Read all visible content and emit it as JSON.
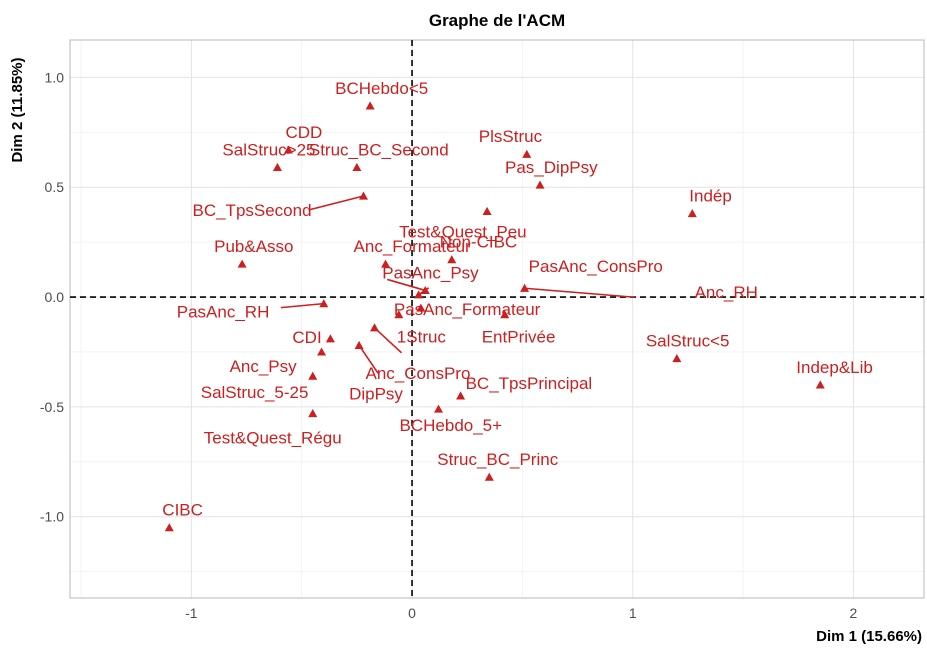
{
  "chart_data": {
    "type": "scatter",
    "title": "Graphe de l'ACM",
    "xlabel": "Dim 1 (15.66%)",
    "ylabel": "Dim 2 (11.85%)",
    "xlim": [
      -1.55,
      2.32
    ],
    "ylim": [
      -1.37,
      1.17
    ],
    "xticks": [
      -1,
      0,
      1,
      2
    ],
    "xtick_labels": [
      "-1",
      "0",
      "1",
      "2"
    ],
    "yticks": [
      1.0,
      0.5,
      0.0,
      -0.5,
      -1.0
    ],
    "ytick_labels": [
      "1.0",
      "0.5",
      "0.0",
      "-0.5",
      "-1.0"
    ],
    "grid": true,
    "reference_lines": {
      "x": 0,
      "y": 0
    },
    "marker": "triangle",
    "color": "#cc1f1f",
    "points": [
      {
        "label": "BCHebdo<5",
        "x": -0.19,
        "y": 0.87
      },
      {
        "label": "CDD",
        "x": -0.56,
        "y": 0.67
      },
      {
        "label": "PlsStruc",
        "x": 0.52,
        "y": 0.65
      },
      {
        "label": "SalStruc>25",
        "x": -0.61,
        "y": 0.59
      },
      {
        "label": "Struc_BC_Second",
        "x": -0.25,
        "y": 0.59
      },
      {
        "label": "Pas_DipPsy",
        "x": 0.58,
        "y": 0.51
      },
      {
        "label": "BC_TpsSecond",
        "x": -0.22,
        "y": 0.46
      },
      {
        "label": "Test&Quest_Peu",
        "x": 0.34,
        "y": 0.39
      },
      {
        "label": "Indép",
        "x": 1.27,
        "y": 0.38
      },
      {
        "label": "Non-CIBC",
        "x": 0.18,
        "y": 0.17
      },
      {
        "label": "Pub&Asso",
        "x": -0.77,
        "y": 0.15
      },
      {
        "label": "Anc_Formateur",
        "x": -0.12,
        "y": 0.15
      },
      {
        "label": "PasAnc_Psy",
        "x": 0.06,
        "y": 0.03
      },
      {
        "label": "PasAnc_ConsPro",
        "x": 0.03,
        "y": 0.01
      },
      {
        "label": "Anc_RH",
        "x": 0.51,
        "y": 0.04
      },
      {
        "label": "PasAnc_Formateur",
        "x": 0.04,
        "y": -0.05
      },
      {
        "label": "PasAnc_RH",
        "x": -0.4,
        "y": -0.03
      },
      {
        "label": "1Struc",
        "x": -0.06,
        "y": -0.08
      },
      {
        "label": "EntPrivée",
        "x": 0.42,
        "y": -0.08
      },
      {
        "label": "CDI",
        "x": -0.37,
        "y": -0.19
      },
      {
        "label": "Anc_ConsPro",
        "x": -0.17,
        "y": -0.14
      },
      {
        "label": "DipPsy",
        "x": -0.24,
        "y": -0.22
      },
      {
        "label": "Anc_Psy",
        "x": -0.41,
        "y": -0.25
      },
      {
        "label": "SalStruc<5",
        "x": 1.2,
        "y": -0.28
      },
      {
        "label": "SalStruc_5-25",
        "x": -0.45,
        "y": -0.36
      },
      {
        "label": "Indep&Lib",
        "x": 1.85,
        "y": -0.4
      },
      {
        "label": "BC_TpsPrincipal",
        "x": 0.22,
        "y": -0.45
      },
      {
        "label": "BCHebdo_5+",
        "x": 0.12,
        "y": -0.51
      },
      {
        "label": "Test&Quest_Régu",
        "x": -0.45,
        "y": -0.53
      },
      {
        "label": "Struc_BC_Princ",
        "x": 0.35,
        "y": -0.82
      },
      {
        "label": "CIBC",
        "x": -1.1,
        "y": -1.05
      }
    ]
  }
}
